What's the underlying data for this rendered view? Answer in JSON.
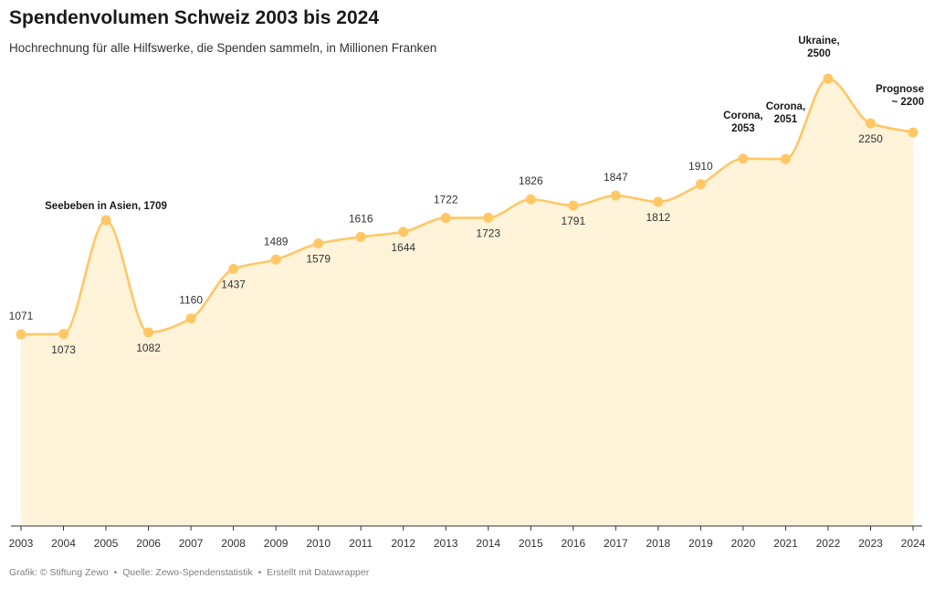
{
  "title": "Spendenvolumen Schweiz 2003 bis 2024",
  "subtitle": "Hochrechnung für alle Hilfswerke, die Spenden sammeln, in Millionen Franken",
  "footer": {
    "graphic": "Grafik: © Stiftung Zewo",
    "source": "Quelle: Zewo-Spendenstatistik",
    "made_with": "Erstellt mit Datawrapper",
    "separator": "•"
  },
  "colors": {
    "line": "#ffc766",
    "area": "#fff3d9",
    "axis": "#333333"
  },
  "chart_data": {
    "type": "area",
    "title": "Spendenvolumen Schweiz 2003 bis 2024",
    "subtitle": "Hochrechnung für alle Hilfswerke, die Spenden sammeln, in Millionen Franken",
    "xlabel": "",
    "ylabel": "",
    "ylim": [
      0,
      2750
    ],
    "grid": false,
    "legend": "none",
    "x": [
      "2003",
      "2004",
      "2005",
      "2006",
      "2007",
      "2008",
      "2009",
      "2010",
      "2011",
      "2012",
      "2013",
      "2014",
      "2015",
      "2016",
      "2017",
      "2018",
      "2019",
      "2020",
      "2021",
      "2022",
      "2023",
      "2024"
    ],
    "series": [
      {
        "values": [
          1071,
          1073,
          1709,
          1082,
          1160,
          1437,
          1489,
          1579,
          1616,
          1644,
          1722,
          1723,
          1826,
          1791,
          1847,
          1812,
          1910,
          2053,
          2051,
          2500,
          2250,
          2200
        ]
      }
    ],
    "data_labels": [
      "1071",
      "1073",
      "",
      "1082",
      "1160",
      "1437",
      "1489",
      "1579",
      "1616",
      "1644",
      "1722",
      "1723",
      "1826",
      "1791",
      "1847",
      "1812",
      "1910",
      "",
      "",
      "",
      "2250",
      ""
    ],
    "annotations": [
      {
        "index": 2,
        "lines": [
          "Seebeben in Asien, 1709"
        ]
      },
      {
        "index": 17,
        "lines": [
          "Corona,",
          "2053"
        ]
      },
      {
        "index": 18,
        "lines": [
          "Corona,",
          "2051"
        ]
      },
      {
        "index": 19,
        "lines": [
          "Ukraine,",
          "2500"
        ]
      },
      {
        "index": 21,
        "lines": [
          "Prognose",
          "~ 2200"
        ]
      }
    ]
  }
}
